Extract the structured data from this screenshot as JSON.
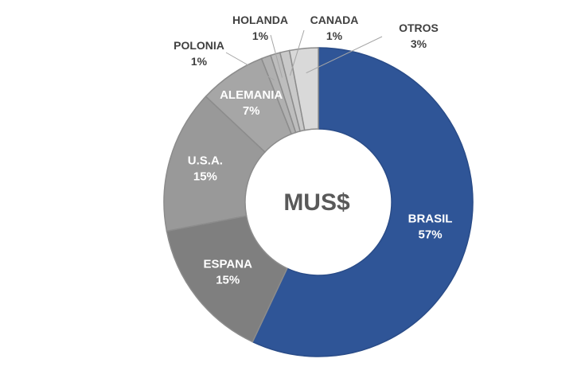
{
  "chart_data": {
    "type": "pie",
    "variant": "donut",
    "center_label": "MUS$",
    "categories": [
      "BRASIL",
      "ESPANA",
      "U.S.A.",
      "ALEMANIA",
      "POLONIA",
      "HOLANDA",
      "CANADA",
      "OTROS"
    ],
    "values": [
      57,
      15,
      15,
      7,
      1,
      1,
      1,
      3
    ],
    "value_labels": [
      "57%",
      "15%",
      "15%",
      "7%",
      "1%",
      "1%",
      "1%",
      "3%"
    ],
    "colors": [
      "#2f5597",
      "#7f7f7f",
      "#999999",
      "#a6a6a6",
      "#b0b0b0",
      "#bdbdbd",
      "#c9c9c9",
      "#d9d9d9"
    ],
    "legend": "none"
  }
}
